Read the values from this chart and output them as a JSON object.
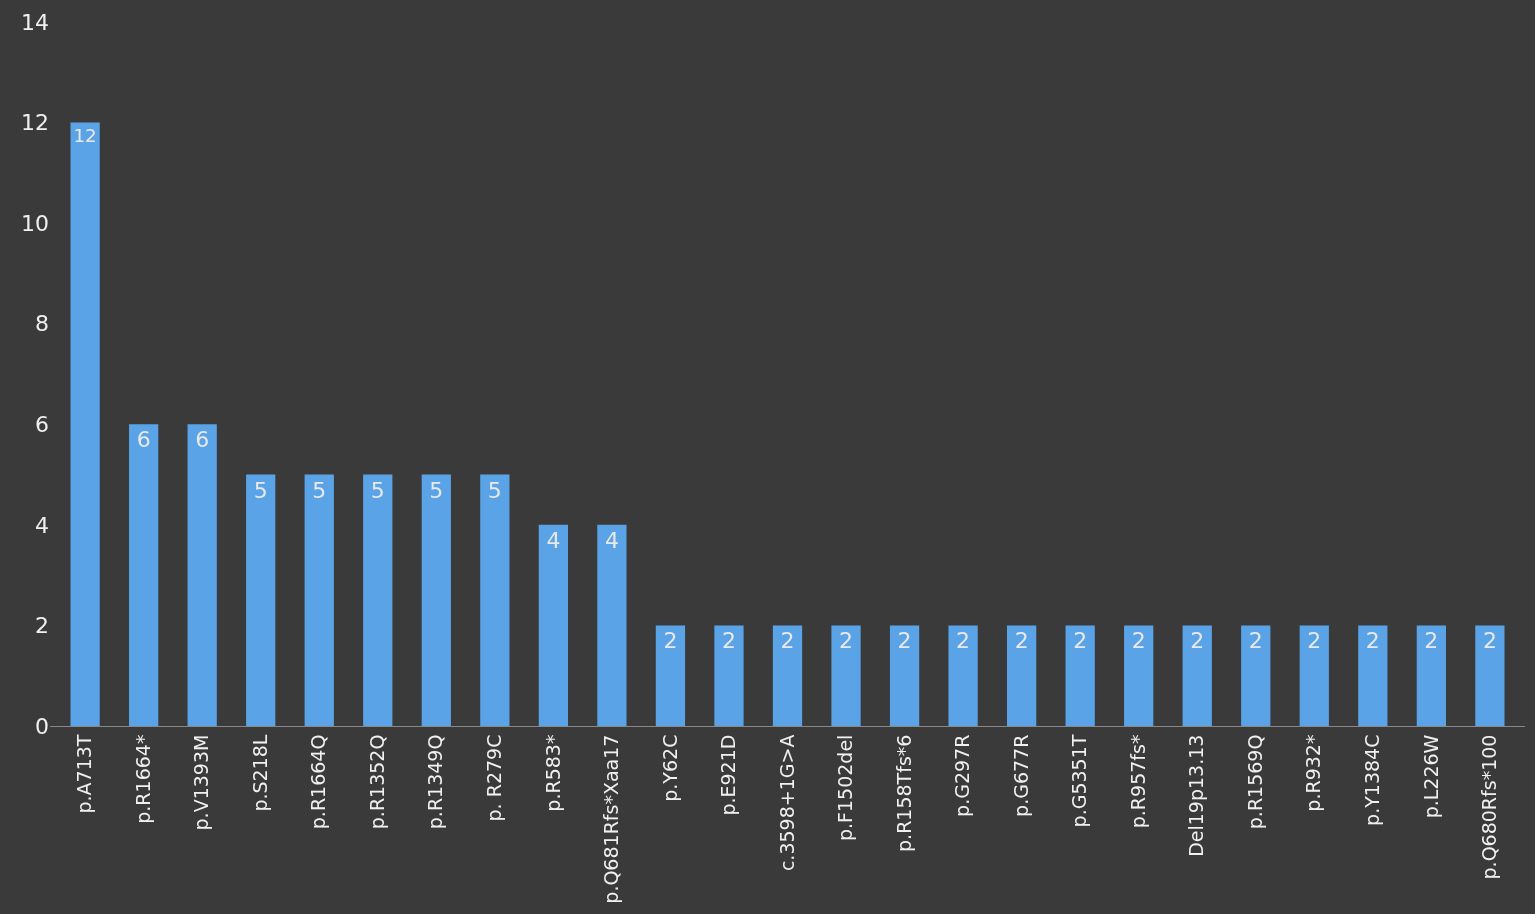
{
  "chart_data": {
    "type": "bar",
    "categories": [
      "p.A713T",
      "p.R1664*",
      "p.V1393M",
      "p.S218L",
      "p.R1664Q",
      "p.R1352Q",
      "p.R1349Q",
      "p. R279C",
      "p.R583*",
      "p.Q681Rfs*Xaa17",
      "p.Y62C",
      "p.E921D",
      "c.3598+1G>A",
      "p.F1502del",
      "p.R158Tfs*6",
      "p.G297R",
      "p.G677R",
      "p.G5351T",
      "p.R957fs*",
      "Del19p13.13",
      "p.R1569Q",
      "p.R932*",
      "p.Y1384C",
      "p.L226W",
      "p.Q680Rfs*100"
    ],
    "values": [
      12,
      6,
      6,
      5,
      5,
      5,
      5,
      5,
      4,
      4,
      2,
      2,
      2,
      2,
      2,
      2,
      2,
      2,
      2,
      2,
      2,
      2,
      2,
      2,
      2
    ],
    "color": "#5aa3e6",
    "ylim": [
      0,
      14
    ],
    "yticks": [
      0,
      2,
      4,
      6,
      8,
      10,
      12,
      14
    ],
    "data_labels": true,
    "grid": false,
    "legend": false
  }
}
